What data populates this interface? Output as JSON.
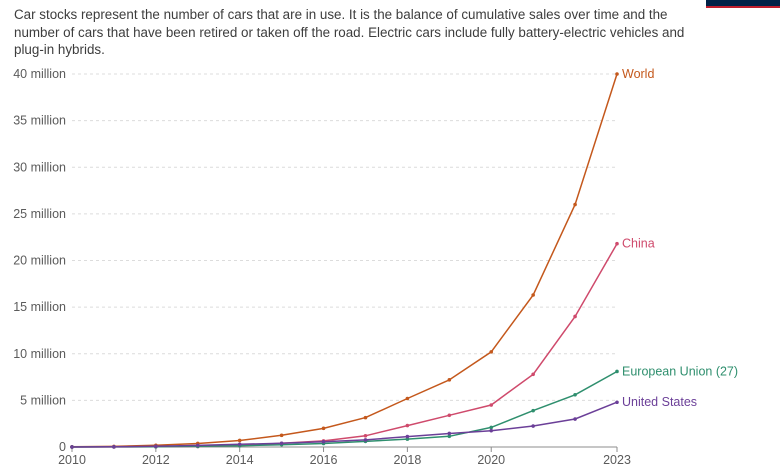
{
  "subtitle": "Car stocks represent the number of cars that are in use. It is the balance of cumulative sales over time and the number of cars that have been retired or taken off the road. Electric cars include fully battery-electric vehicles and plug-in hybrids.",
  "logo_color": "#002147",
  "logo_accent": "#be1e2d",
  "chart_data": {
    "type": "line",
    "x": [
      2010,
      2011,
      2012,
      2013,
      2014,
      2015,
      2016,
      2017,
      2018,
      2019,
      2020,
      2021,
      2022,
      2023
    ],
    "x_ticks": [
      "2010",
      "2012",
      "2014",
      "2016",
      "2018",
      "2020",
      "2023"
    ],
    "x_tick_values": [
      2010,
      2012,
      2014,
      2016,
      2018,
      2020,
      2023
    ],
    "y_ticks": [
      "0",
      "5 million",
      "10 million",
      "15 million",
      "20 million",
      "25 million",
      "30 million",
      "35 million",
      "40 million"
    ],
    "y_tick_values": [
      0,
      5000000,
      10000000,
      15000000,
      20000000,
      25000000,
      30000000,
      35000000,
      40000000
    ],
    "ylim": [
      0,
      40000000
    ],
    "xlim": [
      2010,
      2023
    ],
    "grid": "horizontal dashed",
    "series": [
      {
        "name": "World",
        "color": "#c4581c",
        "values": [
          20000,
          60000,
          180000,
          380000,
          700000,
          1250000,
          2000000,
          3150000,
          5200000,
          7200000,
          10200000,
          16300000,
          26000000,
          40000000
        ]
      },
      {
        "name": "China",
        "color": "#cf4a6c",
        "values": [
          5000,
          10000,
          30000,
          60000,
          150000,
          400000,
          650000,
          1200000,
          2300000,
          3400000,
          4500000,
          7800000,
          14000000,
          21800000
        ]
      },
      {
        "name": "European Union (27)",
        "color": "#2f8f6e",
        "values": [
          2000,
          10000,
          30000,
          70000,
          140000,
          250000,
          380000,
          600000,
          850000,
          1150000,
          2100000,
          3900000,
          5600000,
          8100000
        ]
      },
      {
        "name": "United States",
        "color": "#6b3f98",
        "values": [
          3000,
          20000,
          70000,
          170000,
          290000,
          400000,
          560000,
          760000,
          1120000,
          1450000,
          1750000,
          2250000,
          3000000,
          4800000
        ]
      }
    ]
  }
}
